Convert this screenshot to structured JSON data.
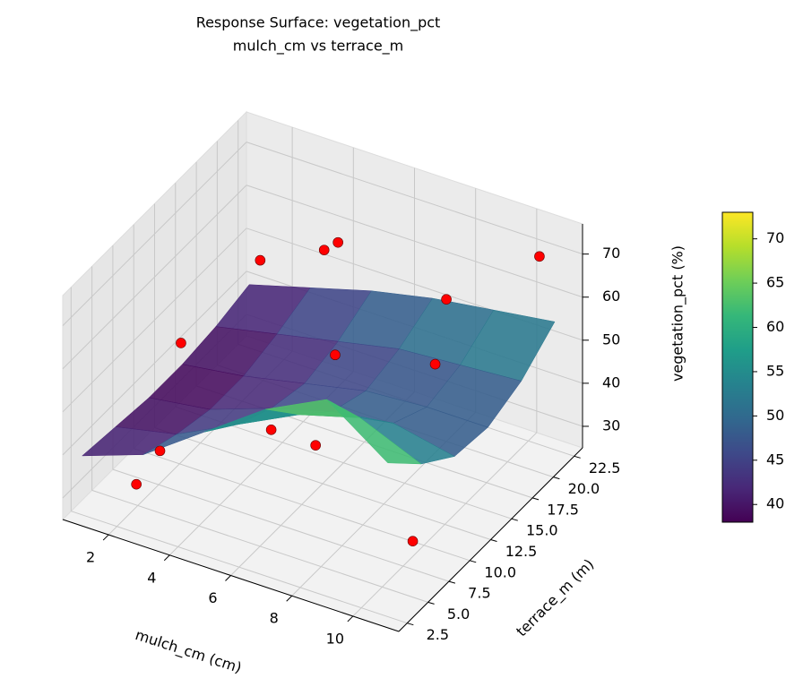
{
  "chart_data": {
    "type": "surface3d",
    "title": "Response Surface: vegetation_pct",
    "subtitle": "mulch_cm vs terrace_m",
    "xlabel": "mulch_cm (cm)",
    "ylabel": "terrace_m (m)",
    "zlabel": "vegetation_pct (%)",
    "xlim": [
      0.5,
      11.5
    ],
    "ylim": [
      1.5,
      23.5
    ],
    "zlim": [
      25,
      77
    ],
    "xticks": [
      2,
      4,
      6,
      8,
      10
    ],
    "yticks": [
      2.5,
      {
        "value": 5,
        "label": "5.0"
      },
      7.5,
      {
        "value": 10,
        "label": "10.0"
      },
      12.5,
      {
        "value": 15,
        "label": "15.0"
      },
      17.5,
      {
        "value": 20,
        "label": "20.0"
      },
      22.5
    ],
    "zticks": [
      30,
      40,
      50,
      60,
      70
    ],
    "surface": {
      "cmap": "viridis",
      "x": [
        1,
        3,
        5,
        7,
        9,
        11
      ],
      "y": [
        2,
        6,
        10,
        14,
        18,
        22
      ],
      "z": [
        [
          40,
          45,
          55,
          65,
          72,
          62
        ],
        [
          39,
          42,
          49,
          56,
          60,
          54
        ],
        [
          38,
          40,
          45,
          49,
          51,
          48
        ],
        [
          38,
          40,
          43,
          46,
          47,
          47
        ],
        [
          39,
          42,
          45,
          48,
          49,
          50
        ],
        [
          41,
          45,
          49,
          52,
          54,
          56
        ]
      ]
    },
    "scatter": {
      "color": "#ff0000",
      "x": [
        1.5,
        3,
        4,
        5,
        7,
        9,
        10.5,
        2.5,
        5,
        6,
        8,
        11,
        3
      ],
      "y": [
        12,
        4,
        20,
        18,
        8,
        15,
        22,
        3,
        10,
        14,
        20,
        5,
        16
      ],
      "z": [
        48,
        42,
        60,
        68,
        45,
        55,
        70,
        35,
        40,
        52,
        58,
        38,
        63
      ]
    },
    "colorbar": {
      "lim": [
        38,
        73
      ],
      "ticks": [
        40,
        45,
        50,
        55,
        60,
        65,
        70
      ]
    }
  }
}
